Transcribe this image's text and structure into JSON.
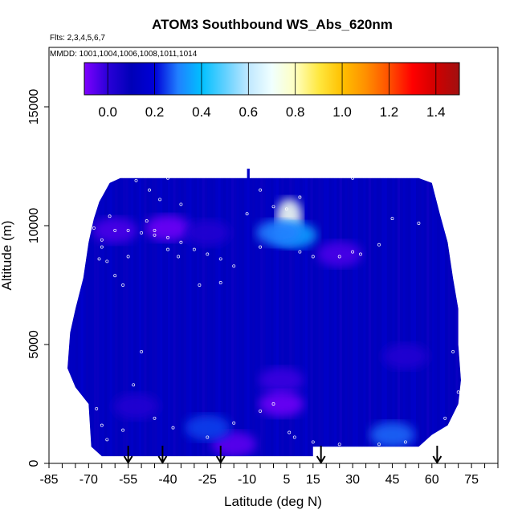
{
  "chart_data": {
    "type": "heatmap",
    "title": "ATOM3 Southbound WS_Abs_620nm",
    "notes": [
      "Flts: 2,3,4,5,6,7",
      "MMDD: 1001,1004,1006,1008,1011,1014"
    ],
    "xlabel": "Latitude (deg N)",
    "ylabel": "Altitude (m)",
    "xlim": [
      -85,
      85
    ],
    "ylim": [
      0,
      17500
    ],
    "x_tick_labels": [
      "-85",
      "-70",
      "-55",
      "-40",
      "-25",
      "-10",
      "5",
      "15",
      "30",
      "45",
      "60",
      "75"
    ],
    "x_tick_values": [
      -85,
      -70,
      -55,
      -40,
      -25,
      -10,
      5,
      15,
      30,
      45,
      60,
      75
    ],
    "y_tick_labels": [
      "0",
      "5000",
      "10000",
      "15000"
    ],
    "y_tick_values": [
      0,
      5000,
      10000,
      15000
    ],
    "colorbar": {
      "range": [
        -0.1,
        1.5
      ],
      "tick_labels": [
        "0.0",
        "0.2",
        "0.4",
        "0.6",
        "0.8",
        "1.0",
        "1.2",
        "1.4"
      ],
      "tick_values": [
        0.0,
        0.2,
        0.4,
        0.6,
        0.8,
        1.0,
        1.2,
        1.4
      ],
      "color_stops": [
        {
          "value": -0.1,
          "color": "#7f00ff"
        },
        {
          "value": 0.0,
          "color": "#2a00d8"
        },
        {
          "value": 0.1,
          "color": "#0000b8"
        },
        {
          "value": 0.2,
          "color": "#0000d8"
        },
        {
          "value": 0.3,
          "color": "#2080ff"
        },
        {
          "value": 0.4,
          "color": "#00c0ff"
        },
        {
          "value": 0.5,
          "color": "#60d0ff"
        },
        {
          "value": 0.6,
          "color": "#c0e8ff"
        },
        {
          "value": 0.7,
          "color": "#f0ffff"
        },
        {
          "value": 0.8,
          "color": "#ffffc0"
        },
        {
          "value": 0.9,
          "color": "#ffe840"
        },
        {
          "value": 1.0,
          "color": "#ffc000"
        },
        {
          "value": 1.1,
          "color": "#ff9000"
        },
        {
          "value": 1.2,
          "color": "#ff5000"
        },
        {
          "value": 1.3,
          "color": "#ff0000"
        },
        {
          "value": 1.4,
          "color": "#d00000"
        },
        {
          "value": 1.5,
          "color": "#a01010"
        }
      ]
    },
    "field": {
      "background_value": 0.12,
      "envelope": [
        [
          -69,
          700
        ],
        [
          -70,
          2500
        ],
        [
          -75,
          3200
        ],
        [
          -78,
          4000
        ],
        [
          -77,
          5500
        ],
        [
          -75,
          6500
        ],
        [
          -72,
          7800
        ],
        [
          -70,
          9300
        ],
        [
          -68,
          10300
        ],
        [
          -66,
          11000
        ],
        [
          -62,
          11800
        ],
        [
          -58,
          12000
        ],
        [
          -10,
          12000
        ],
        [
          -10,
          12400
        ],
        [
          -9,
          12400
        ],
        [
          -9,
          12000
        ],
        [
          55,
          12000
        ],
        [
          60,
          11800
        ],
        [
          63,
          10500
        ],
        [
          66,
          9300
        ],
        [
          68,
          7800
        ],
        [
          70,
          6500
        ],
        [
          70,
          5000
        ],
        [
          71,
          3500
        ],
        [
          70,
          2500
        ],
        [
          66,
          1600
        ],
        [
          60,
          1200
        ],
        [
          55,
          700
        ],
        [
          15,
          700
        ],
        [
          15,
          300
        ],
        [
          -65,
          300
        ],
        [
          -69,
          700
        ]
      ],
      "anomalies": [
        {
          "lat": 6,
          "alt": 10400,
          "value": 0.72
        },
        {
          "lat": 8,
          "alt": 9600,
          "value": 0.35
        },
        {
          "lat": 2,
          "alt": 9700,
          "value": 0.3
        },
        {
          "lat": -40,
          "alt": 9900,
          "value": -0.08
        },
        {
          "lat": -25,
          "alt": 9700,
          "value": 0.02
        },
        {
          "lat": -60,
          "alt": 9800,
          "value": -0.04
        },
        {
          "lat": 25,
          "alt": 8800,
          "value": -0.04
        },
        {
          "lat": 3,
          "alt": 3500,
          "value": -0.02
        },
        {
          "lat": 3,
          "alt": 2500,
          "value": -0.08
        },
        {
          "lat": -52,
          "alt": 2400,
          "value": 0.02
        },
        {
          "lat": -15,
          "alt": 800,
          "value": -0.06
        },
        {
          "lat": 45,
          "alt": 1200,
          "value": 0.28
        },
        {
          "lat": -25,
          "alt": 1500,
          "value": 0.25
        },
        {
          "lat": 50,
          "alt": 4500,
          "value": 0.02
        }
      ]
    },
    "sample_points": [
      [
        -52,
        11900
      ],
      [
        -47,
        11500
      ],
      [
        -43,
        11100
      ],
      [
        -35,
        10900
      ],
      [
        -62,
        10400
      ],
      [
        -60,
        9800
      ],
      [
        -55,
        9800
      ],
      [
        -50,
        9700
      ],
      [
        -45,
        9600
      ],
      [
        -40,
        9500
      ],
      [
        -35,
        9300
      ],
      [
        -30,
        9000
      ],
      [
        -25,
        8800
      ],
      [
        -20,
        8600
      ],
      [
        -65,
        9100
      ],
      [
        -63,
        8500
      ],
      [
        -60,
        7900
      ],
      [
        -57,
        7500
      ],
      [
        -50,
        4700
      ],
      [
        -53,
        3300
      ],
      [
        -57,
        1400
      ],
      [
        -67,
        2300
      ],
      [
        -65,
        1600
      ],
      [
        -63,
        1000
      ],
      [
        -45,
        1900
      ],
      [
        -38,
        1500
      ],
      [
        -25,
        1100
      ],
      [
        -15,
        1700
      ],
      [
        -5,
        2200
      ],
      [
        0,
        2500
      ],
      [
        6,
        1300
      ],
      [
        8,
        1100
      ],
      [
        15,
        900
      ],
      [
        25,
        800
      ],
      [
        40,
        800
      ],
      [
        50,
        900
      ],
      [
        60,
        1000
      ],
      [
        65,
        1900
      ],
      [
        70,
        3000
      ],
      [
        68,
        4700
      ],
      [
        55,
        10100
      ],
      [
        45,
        10300
      ],
      [
        40,
        9200
      ],
      [
        30,
        8900
      ],
      [
        33,
        8800
      ],
      [
        25,
        8700
      ],
      [
        15,
        8700
      ],
      [
        10,
        8900
      ],
      [
        -5,
        9100
      ],
      [
        -15,
        8300
      ],
      [
        -20,
        7600
      ],
      [
        -28,
        7500
      ],
      [
        -40,
        9000
      ],
      [
        -45,
        9800
      ],
      [
        -48,
        10200
      ],
      [
        -65,
        9400
      ],
      [
        -68,
        9900
      ],
      [
        -66,
        8600
      ],
      [
        -78,
        8000
      ],
      [
        0,
        10800
      ],
      [
        5,
        10700
      ],
      [
        10,
        11200
      ],
      [
        30,
        12000
      ],
      [
        -40,
        12000
      ],
      [
        -5,
        11500
      ],
      [
        -10,
        10500
      ],
      [
        -36,
        8700
      ],
      [
        -55,
        8700
      ]
    ],
    "arrows_lat": [
      -55,
      -42,
      -20,
      18,
      62
    ]
  }
}
